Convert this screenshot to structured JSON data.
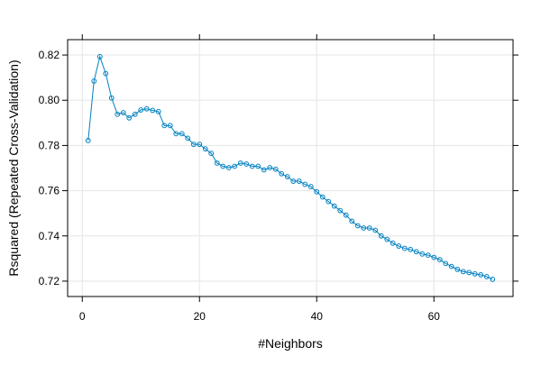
{
  "chart_data": {
    "type": "line",
    "title": "",
    "xlabel": "#Neighbors",
    "ylabel": "Rsquared (Repeated Cross-Validation)",
    "xlim": [
      -2.5,
      73.5
    ],
    "ylim": [
      0.7132,
      0.8268
    ],
    "x_ticks": [
      {
        "value": 0,
        "label": "0"
      },
      {
        "value": 20,
        "label": "20"
      },
      {
        "value": 40,
        "label": "40"
      },
      {
        "value": 60,
        "label": "60"
      }
    ],
    "y_ticks": [
      {
        "value": 0.72,
        "label": "0.72"
      },
      {
        "value": 0.74,
        "label": "0.74"
      },
      {
        "value": 0.76,
        "label": "0.76"
      },
      {
        "value": 0.78,
        "label": "0.78"
      },
      {
        "value": 0.8,
        "label": "0.80"
      },
      {
        "value": 0.82,
        "label": "0.82"
      }
    ],
    "grid": true,
    "legend": "none",
    "colors": {
      "series": "#0080C0",
      "grid": "#E6E6E6",
      "axis": "#000000"
    },
    "series": [
      {
        "marker": "circle-open",
        "x": [
          1,
          2,
          3,
          4,
          5,
          6,
          7,
          8,
          9,
          10,
          11,
          12,
          13,
          14,
          15,
          16,
          17,
          18,
          19,
          20,
          21,
          22,
          23,
          24,
          25,
          26,
          27,
          28,
          29,
          30,
          31,
          32,
          33,
          34,
          35,
          36,
          37,
          38,
          39,
          40,
          41,
          42,
          43,
          44,
          45,
          46,
          47,
          48,
          49,
          50,
          51,
          52,
          53,
          54,
          55,
          56,
          57,
          58,
          59,
          60,
          61,
          62,
          63,
          64,
          65,
          66,
          67,
          68,
          69,
          70
        ],
        "values": [
          0.7822,
          0.8085,
          0.8193,
          0.8118,
          0.801,
          0.7938,
          0.7945,
          0.7922,
          0.7938,
          0.7957,
          0.7962,
          0.7955,
          0.795,
          0.7888,
          0.7888,
          0.7852,
          0.7852,
          0.7832,
          0.7805,
          0.7805,
          0.7785,
          0.7765,
          0.7722,
          0.7708,
          0.7702,
          0.7708,
          0.7722,
          0.7718,
          0.7708,
          0.7708,
          0.7692,
          0.7702,
          0.7695,
          0.7675,
          0.7662,
          0.7642,
          0.7642,
          0.7628,
          0.7618,
          0.7595,
          0.7572,
          0.7552,
          0.7532,
          0.7512,
          0.7492,
          0.7465,
          0.7445,
          0.7435,
          0.7435,
          0.7425,
          0.74,
          0.7385,
          0.7368,
          0.7355,
          0.7345,
          0.734,
          0.733,
          0.732,
          0.7315,
          0.7305,
          0.7295,
          0.7278,
          0.7265,
          0.7252,
          0.7242,
          0.7238,
          0.7232,
          0.7228,
          0.722,
          0.7208
        ]
      }
    ]
  }
}
